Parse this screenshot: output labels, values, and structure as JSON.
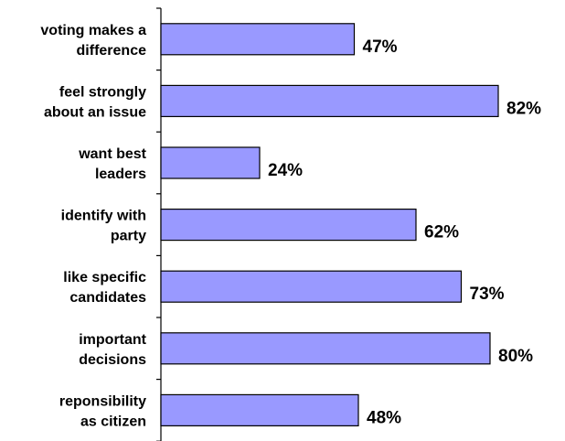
{
  "chart_data": {
    "type": "bar",
    "orientation": "horizontal",
    "categories": [
      [
        "voting makes a",
        "difference"
      ],
      [
        "feel strongly",
        "about an issue"
      ],
      [
        "want best",
        "leaders"
      ],
      [
        "identify with",
        "party"
      ],
      [
        "like specific",
        "candidates"
      ],
      [
        "important",
        "decisions"
      ],
      [
        "reponsibility",
        "as citizen"
      ]
    ],
    "values": [
      47,
      82,
      24,
      62,
      73,
      80,
      48
    ],
    "value_labels": [
      "47%",
      "82%",
      "24%",
      "62%",
      "73%",
      "80%",
      "48%"
    ],
    "xlim": [
      0,
      100
    ],
    "unit": "%",
    "bar_color": "#9999ff",
    "bar_border_color": "#000000",
    "grid": false,
    "legend": "none"
  }
}
